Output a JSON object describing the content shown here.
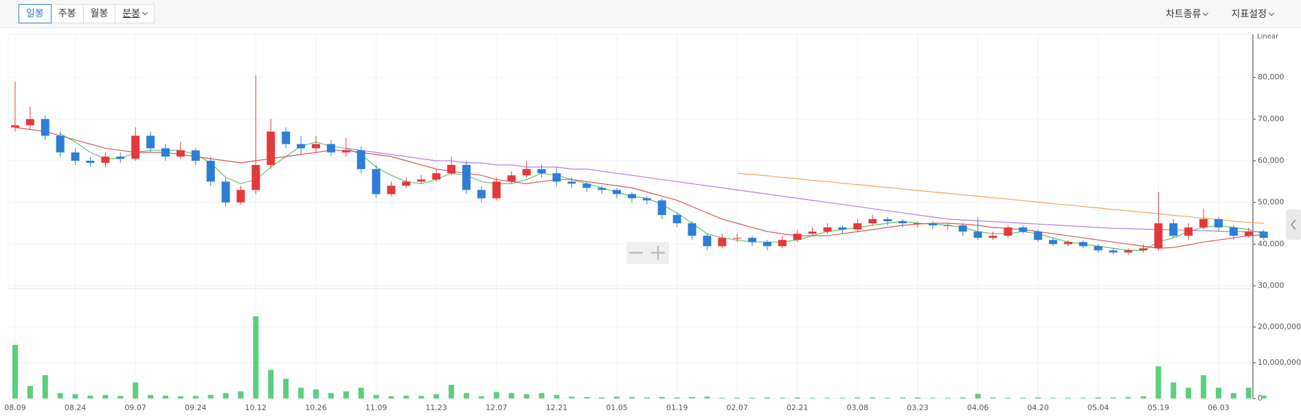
{
  "toolbar": {
    "periods": [
      "일봉",
      "주봉",
      "월봉",
      "분봉"
    ],
    "selected": 0,
    "dropdown": [
      3
    ],
    "right": [
      "차트종류",
      "지표설정"
    ]
  },
  "chart_data": {
    "type": "candlestick",
    "scale_label": "Linear",
    "categories": [
      "08.09",
      null,
      null,
      null,
      "08.24",
      null,
      null,
      null,
      "09.07",
      null,
      null,
      null,
      "09.24",
      null,
      null,
      null,
      "10.12",
      null,
      null,
      null,
      "10.26",
      null,
      null,
      null,
      "11.09",
      null,
      null,
      null,
      "11.23",
      null,
      null,
      null,
      "12.07",
      null,
      null,
      null,
      "12.21",
      null,
      null,
      null,
      "01.05",
      null,
      null,
      null,
      "01.19",
      null,
      null,
      null,
      "02.07",
      null,
      null,
      null,
      "02.21",
      null,
      null,
      null,
      "03.08",
      null,
      null,
      null,
      "03.23",
      null,
      null,
      null,
      "04.06",
      null,
      null,
      null,
      "04.20",
      null,
      null,
      null,
      "05.04",
      null,
      null,
      null,
      "05.19",
      null,
      null,
      null,
      "06.03",
      null,
      null,
      null
    ],
    "open": [
      68000,
      68500,
      70000,
      66000,
      62000,
      60000,
      59500,
      61000,
      60500,
      66000,
      63000,
      61000,
      62500,
      60000,
      55000,
      50000,
      53000,
      59000,
      67000,
      64000,
      63000,
      64000,
      62000,
      62500,
      58000,
      52000,
      54000,
      55000,
      55500,
      57000,
      59000,
      53000,
      51000,
      55000,
      56500,
      58000,
      57000,
      55000,
      54500,
      53500,
      53000,
      52000,
      51000,
      50500,
      47000,
      45000,
      42000,
      39500,
      41500,
      41500,
      40500,
      39500,
      41000,
      42500,
      43000,
      44000,
      43500,
      45000,
      46000,
      45500,
      45000,
      45000,
      44500,
      44500,
      43000,
      41500,
      42000,
      44000,
      43000,
      41000,
      40000,
      40500,
      39500,
      38500,
      38000,
      38500,
      39000,
      45000,
      42000,
      44000,
      46000,
      44000,
      42000,
      43000
    ],
    "high": [
      79000,
      73000,
      71000,
      67000,
      63000,
      61000,
      62000,
      62000,
      68000,
      67000,
      64000,
      64500,
      63000,
      61000,
      56000,
      54000,
      80500,
      70000,
      68000,
      66000,
      66000,
      65000,
      65500,
      63500,
      59000,
      55000,
      56000,
      56500,
      58000,
      61000,
      60000,
      54000,
      56000,
      57500,
      60000,
      59000,
      58500,
      56000,
      55000,
      54000,
      53500,
      52500,
      51500,
      51000,
      47500,
      45500,
      42500,
      42500,
      42500,
      42000,
      41000,
      42000,
      43500,
      44000,
      45000,
      44500,
      46000,
      47000,
      46500,
      46000,
      45500,
      45500,
      45000,
      45000,
      46500,
      43000,
      44500,
      44500,
      43500,
      41500,
      41000,
      41000,
      40000,
      39000,
      39000,
      40000,
      52500,
      46000,
      45000,
      48500,
      46500,
      44500,
      44000,
      43500
    ],
    "low": [
      67000,
      67500,
      65000,
      61000,
      59000,
      58500,
      58500,
      59500,
      60000,
      62000,
      60000,
      60500,
      59000,
      54000,
      49000,
      49500,
      52000,
      58000,
      63000,
      61500,
      62000,
      61000,
      61000,
      57000,
      51000,
      51500,
      53500,
      54500,
      55000,
      56500,
      52000,
      50000,
      50500,
      54500,
      56000,
      56000,
      54000,
      53500,
      52500,
      52000,
      51000,
      50000,
      49500,
      46000,
      44000,
      41000,
      38500,
      39000,
      40500,
      39500,
      38500,
      39000,
      40500,
      42000,
      42500,
      42500,
      43000,
      44500,
      44500,
      44000,
      44000,
      43500,
      43500,
      42000,
      41000,
      41000,
      41500,
      42500,
      40500,
      39500,
      39500,
      39000,
      38000,
      37500,
      37500,
      38000,
      38500,
      41500,
      41000,
      43500,
      43000,
      41000,
      41500,
      41000
    ],
    "close": [
      68500,
      70000,
      66000,
      62000,
      60000,
      59500,
      61000,
      60500,
      66000,
      63000,
      61000,
      62500,
      60000,
      55000,
      50000,
      53000,
      59000,
      67000,
      64000,
      63000,
      64000,
      62000,
      62500,
      58000,
      52000,
      54000,
      55000,
      55500,
      57000,
      59000,
      53000,
      51000,
      55000,
      56500,
      58000,
      57000,
      55000,
      54500,
      53500,
      53000,
      52000,
      51000,
      50500,
      47000,
      45000,
      42000,
      39500,
      41500,
      41500,
      40500,
      39500,
      41000,
      42500,
      43000,
      44000,
      43500,
      45000,
      46000,
      45500,
      45000,
      45000,
      44500,
      44500,
      43000,
      41500,
      42000,
      44000,
      43000,
      41000,
      40000,
      40500,
      39500,
      38500,
      38000,
      38500,
      39000,
      45000,
      42000,
      44000,
      46000,
      44000,
      42000,
      43000,
      41500
    ],
    "up_color": "#e5383b",
    "down_color": "#2d7ed6",
    "lines": [
      {
        "color": "#5cbf6a",
        "values": [
          null,
          null,
          null,
          66500,
          64500,
          62000,
          60500,
          60500,
          62000,
          62500,
          62500,
          62500,
          61500,
          59500,
          56000,
          54500,
          55500,
          58500,
          61000,
          63500,
          64500,
          63500,
          63000,
          61500,
          58500,
          56500,
          55000,
          54500,
          55500,
          57000,
          56500,
          55000,
          54500,
          54500,
          55500,
          57000,
          56500,
          55500,
          54500,
          53500,
          52500,
          51500,
          51000,
          49500,
          47500,
          45000,
          42500,
          41500,
          41000,
          40500,
          40500,
          40500,
          41000,
          42000,
          43000,
          43500,
          44000,
          44500,
          45000,
          45500,
          45000,
          44800,
          44500,
          44000,
          43000,
          42500,
          42500,
          43000,
          42500,
          41500,
          40500,
          40000,
          39500,
          39000,
          38500,
          38500,
          40500,
          41500,
          43000,
          44000,
          44500,
          44000,
          43500,
          42500
        ]
      },
      {
        "color": "#d9534f",
        "values": [
          68000,
          67500,
          67000,
          66000,
          65000,
          64000,
          63000,
          62500,
          62000,
          62000,
          62000,
          61500,
          61000,
          60500,
          60000,
          59500,
          60000,
          60500,
          61000,
          61500,
          62000,
          62500,
          62500,
          62000,
          61500,
          61000,
          60000,
          59000,
          58000,
          57500,
          57000,
          56500,
          55500,
          55000,
          54500,
          55000,
          55500,
          55500,
          55000,
          54500,
          54000,
          53500,
          52500,
          51500,
          50500,
          49000,
          47500,
          46000,
          45000,
          44000,
          43000,
          42500,
          42000,
          42000,
          42000,
          42500,
          43000,
          43500,
          44000,
          44500,
          44800,
          45000,
          45000,
          44800,
          44500,
          44000,
          43800,
          43500,
          43000,
          42500,
          42000,
          41500,
          41000,
          40500,
          40000,
          39500,
          39000,
          39200,
          39800,
          40500,
          41000,
          41500,
          42000,
          42300
        ]
      },
      {
        "color": "#b57be0",
        "values": [
          null,
          null,
          null,
          null,
          null,
          null,
          null,
          null,
          null,
          null,
          null,
          null,
          null,
          null,
          null,
          null,
          null,
          null,
          null,
          null,
          null,
          null,
          63000,
          62500,
          62000,
          61500,
          61000,
          60500,
          60000,
          60000,
          59500,
          59500,
          59000,
          59000,
          58500,
          58500,
          58500,
          58000,
          58000,
          57500,
          57000,
          56500,
          56000,
          55500,
          55000,
          54500,
          54000,
          53500,
          53000,
          52500,
          52000,
          51500,
          51000,
          50500,
          50000,
          49500,
          49000,
          48500,
          48000,
          47500,
          47000,
          46500,
          46000,
          45800,
          45600,
          45400,
          45200,
          45000,
          44800,
          44600,
          44400,
          44200,
          44000,
          43800,
          43700,
          43600,
          43500,
          43400,
          43300,
          43200,
          43100,
          43000,
          43000,
          43000
        ]
      },
      {
        "color": "#f0a35e",
        "values": [
          null,
          null,
          null,
          null,
          null,
          null,
          null,
          null,
          null,
          null,
          null,
          null,
          null,
          null,
          null,
          null,
          null,
          null,
          null,
          null,
          null,
          null,
          null,
          null,
          null,
          null,
          null,
          null,
          null,
          null,
          null,
          null,
          null,
          null,
          null,
          null,
          null,
          null,
          null,
          null,
          null,
          null,
          null,
          null,
          null,
          null,
          null,
          null,
          57000,
          56700,
          56400,
          56000,
          55700,
          55300,
          55000,
          54600,
          54300,
          53900,
          53600,
          53200,
          52900,
          52500,
          52200,
          51800,
          51500,
          51100,
          50800,
          50400,
          50100,
          49700,
          49400,
          49000,
          48700,
          48300,
          48000,
          47600,
          47300,
          46900,
          46600,
          46200,
          45900,
          45500,
          45200,
          45000
        ]
      }
    ],
    "ylim": [
      30000,
      90000
    ],
    "yticks": [
      {
        "value": 30000,
        "label": "30,000"
      },
      {
        "value": 40000,
        "label": "40,000"
      },
      {
        "value": 50000,
        "label": "50,000"
      },
      {
        "value": 60000,
        "label": "60,000"
      },
      {
        "value": 70000,
        "label": "70,000"
      },
      {
        "value": 80000,
        "label": "80,000"
      }
    ],
    "volume": [
      15000000,
      3500000,
      6500000,
      1500000,
      1200000,
      800000,
      1000000,
      700000,
      4500000,
      1000000,
      800000,
      600000,
      700000,
      1000000,
      1500000,
      2000000,
      23000000,
      8000000,
      5500000,
      3000000,
      2500000,
      1500000,
      2000000,
      3000000,
      1000000,
      600000,
      800000,
      700000,
      1200000,
      3800000,
      1500000,
      600000,
      1800000,
      1500000,
      1200000,
      1500000,
      1000000,
      500000,
      400000,
      300000,
      500000,
      400000,
      300000,
      400000,
      300000,
      400000,
      500000,
      200000,
      200000,
      200000,
      300000,
      200000,
      300000,
      200000,
      200000,
      200000,
      300000,
      300000,
      200000,
      300000,
      300000,
      200000,
      200000,
      300000,
      1300000,
      300000,
      200000,
      200000,
      300000,
      200000,
      200000,
      200000,
      300000,
      300000,
      400000,
      600000,
      9000000,
      4500000,
      3000000,
      6500000,
      3000000,
      1500000,
      3000000,
      800000
    ],
    "volume_color": "#5ccf7c",
    "vlim": [
      0,
      30000000
    ],
    "vticks": [
      0,
      {
        "value": 10000000,
        "label": "10,000,000"
      },
      {
        "value": 20000000,
        "label": "20,000,000"
      }
    ],
    "grid": true
  }
}
